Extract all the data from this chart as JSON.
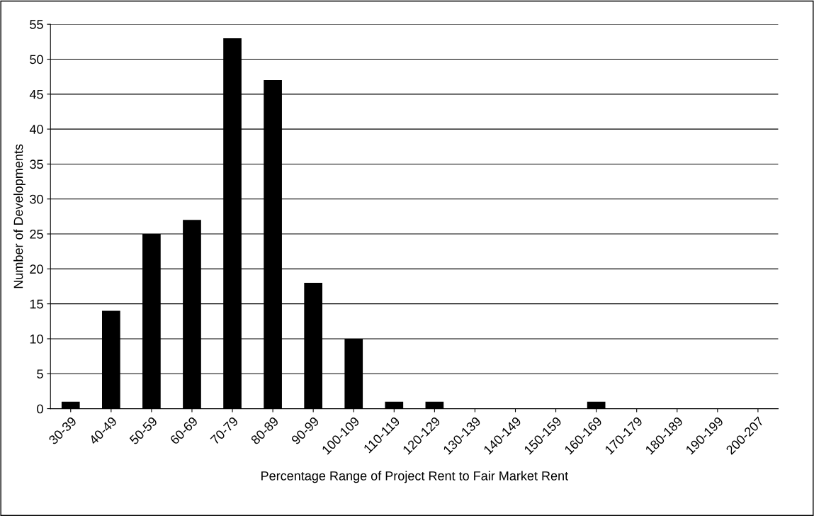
{
  "chart_data": {
    "type": "bar",
    "xlabel": "Percentage Range of Project Rent to Fair Market Rent",
    "ylabel": "Number of Developments",
    "categories": [
      "30-39",
      "40-49",
      "50-59",
      "60-69",
      "70-79",
      "80-89",
      "90-99",
      "100-109",
      "110-119",
      "120-129",
      "130-139",
      "140-149",
      "150-159",
      "160-169",
      "170-179",
      "180-189",
      "190-199",
      "200-207"
    ],
    "values": [
      1,
      14,
      25,
      27,
      53,
      47,
      18,
      10,
      1,
      1,
      0,
      0,
      0,
      1,
      0,
      0,
      0,
      0
    ],
    "color": "#000000",
    "ylim": [
      0,
      55
    ],
    "yticks": [
      0,
      5,
      10,
      15,
      20,
      25,
      30,
      35,
      40,
      45,
      50,
      55
    ],
    "grid": "y"
  }
}
